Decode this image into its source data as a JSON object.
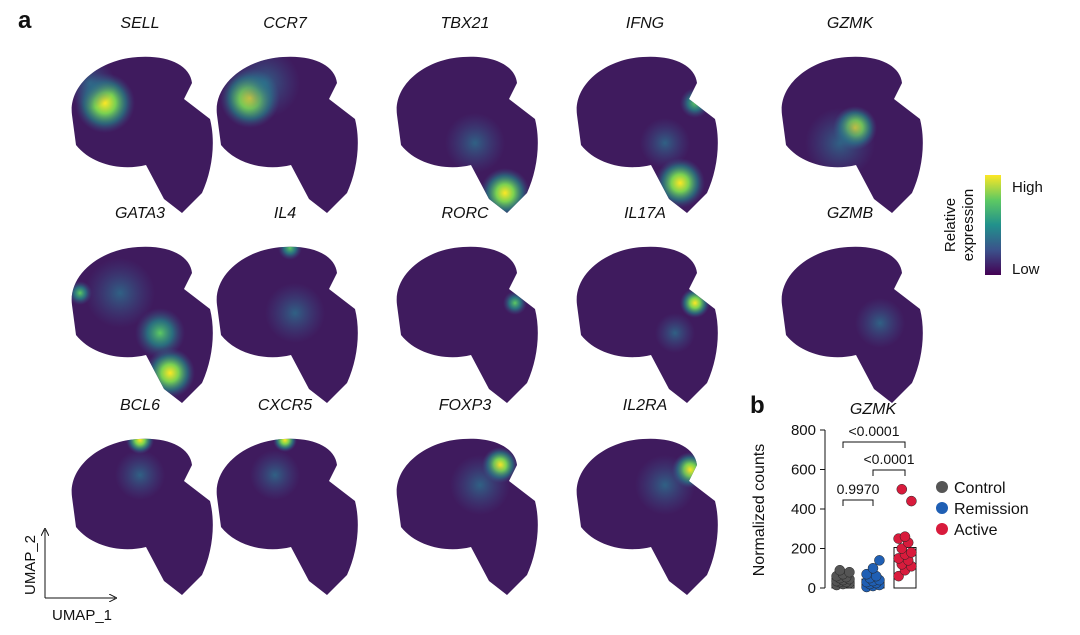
{
  "panel_a": {
    "label": "a",
    "genes": [
      "SELL",
      "CCR7",
      "TBX21",
      "IFNG",
      "GZMK",
      "GATA3",
      "IL4",
      "RORC",
      "IL17A",
      "GZMB",
      "BCL6",
      "CXCR5",
      "FOXP3",
      "IL2RA"
    ],
    "colorbar": {
      "title_line1": "Relative",
      "title_line2": "expression",
      "high": "High",
      "low": "Low"
    },
    "x_axis_label": "UMAP_1",
    "y_axis_label": "UMAP_2"
  },
  "chart_data": {
    "type": "bar",
    "label": "b",
    "title": "GZMK",
    "y_label": "Normalized counts",
    "categories": [
      "Control",
      "Remission",
      "Active"
    ],
    "colors": [
      "#555555",
      "#1f5fb4",
      "#d81b3c"
    ],
    "values": [
      50,
      45,
      205
    ],
    "points": [
      [
        15,
        20,
        25,
        30,
        30,
        35,
        40,
        45,
        50,
        55,
        60,
        70,
        80,
        90
      ],
      [
        5,
        10,
        15,
        20,
        25,
        30,
        35,
        40,
        50,
        60,
        70,
        100,
        140
      ],
      [
        60,
        90,
        110,
        120,
        140,
        150,
        170,
        180,
        200,
        230,
        250,
        260,
        440,
        500
      ]
    ],
    "annotations": [
      "<0.0001",
      "<0.0001",
      "0.9970"
    ],
    "ylim": [
      0,
      800
    ],
    "yticks": [
      0,
      200,
      400,
      600,
      800
    ]
  }
}
